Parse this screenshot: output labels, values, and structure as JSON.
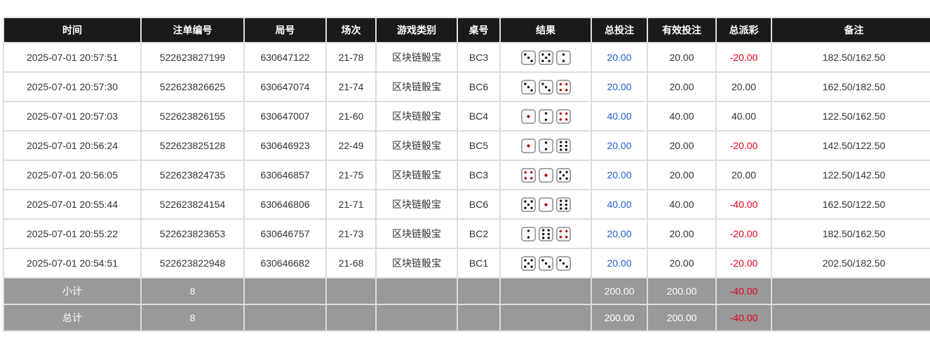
{
  "headers": [
    "时间",
    "注单编号",
    "局号",
    "场次",
    "游戏类别",
    "桌号",
    "结果",
    "总投注",
    "有效投注",
    "总派彩",
    "备注"
  ],
  "colors": {
    "header_bg": "#1a1a1a",
    "summary_bg": "#999999",
    "bet": "#1f5fd1",
    "loss": "#e8001c",
    "dice_red_pip": "#b00000"
  },
  "rows": [
    {
      "time": "2025-07-01 20:57:51",
      "bet_no": "522623827199",
      "round": "630647122",
      "session": "21-78",
      "game": "区块链骰宝",
      "table": "BC3",
      "dice": [
        3,
        5,
        2
      ],
      "total_bet": "20.00",
      "valid_bet": "20.00",
      "payout": "-20.00",
      "payout_neg": true,
      "note": "182.50/162.50"
    },
    {
      "time": "2025-07-01 20:57:30",
      "bet_no": "522623826625",
      "round": "630647074",
      "session": "21-74",
      "game": "区块链骰宝",
      "table": "BC6",
      "dice": [
        3,
        3,
        4
      ],
      "total_bet": "20.00",
      "valid_bet": "20.00",
      "payout": "20.00",
      "payout_neg": false,
      "note": "162.50/182.50"
    },
    {
      "time": "2025-07-01 20:57:03",
      "bet_no": "522623826155",
      "round": "630647007",
      "session": "21-60",
      "game": "区块链骰宝",
      "table": "BC4",
      "dice": [
        1,
        2,
        4
      ],
      "total_bet": "40.00",
      "valid_bet": "40.00",
      "payout": "40.00",
      "payout_neg": false,
      "note": "122.50/162.50"
    },
    {
      "time": "2025-07-01 20:56:24",
      "bet_no": "522623825128",
      "round": "630646923",
      "session": "22-49",
      "game": "区块链骰宝",
      "table": "BC5",
      "dice": [
        1,
        2,
        6
      ],
      "total_bet": "20.00",
      "valid_bet": "20.00",
      "payout": "-20.00",
      "payout_neg": true,
      "note": "142.50/122.50"
    },
    {
      "time": "2025-07-01 20:56:05",
      "bet_no": "522623824735",
      "round": "630646857",
      "session": "21-75",
      "game": "区块链骰宝",
      "table": "BC3",
      "dice": [
        4,
        1,
        5
      ],
      "total_bet": "20.00",
      "valid_bet": "20.00",
      "payout": "20.00",
      "payout_neg": false,
      "note": "122.50/142.50"
    },
    {
      "time": "2025-07-01 20:55:44",
      "bet_no": "522623824154",
      "round": "630646806",
      "session": "21-71",
      "game": "区块链骰宝",
      "table": "BC6",
      "dice": [
        5,
        1,
        6
      ],
      "total_bet": "40.00",
      "valid_bet": "40.00",
      "payout": "-40.00",
      "payout_neg": true,
      "note": "162.50/122.50"
    },
    {
      "time": "2025-07-01 20:55:22",
      "bet_no": "522623823653",
      "round": "630646757",
      "session": "21-73",
      "game": "区块链骰宝",
      "table": "BC2",
      "dice": [
        2,
        6,
        4
      ],
      "total_bet": "20.00",
      "valid_bet": "20.00",
      "payout": "-20.00",
      "payout_neg": true,
      "note": "182.50/162.50"
    },
    {
      "time": "2025-07-01 20:54:51",
      "bet_no": "522623822948",
      "round": "630646682",
      "session": "21-68",
      "game": "区块链骰宝",
      "table": "BC1",
      "dice": [
        5,
        3,
        3
      ],
      "total_bet": "20.00",
      "valid_bet": "20.00",
      "payout": "-20.00",
      "payout_neg": true,
      "note": "202.50/182.50"
    }
  ],
  "summary": [
    {
      "label": "小计",
      "count": "8",
      "total_bet": "200.00",
      "valid_bet": "200.00",
      "payout": "-40.00"
    },
    {
      "label": "总计",
      "count": "8",
      "total_bet": "200.00",
      "valid_bet": "200.00",
      "payout": "-40.00"
    }
  ]
}
